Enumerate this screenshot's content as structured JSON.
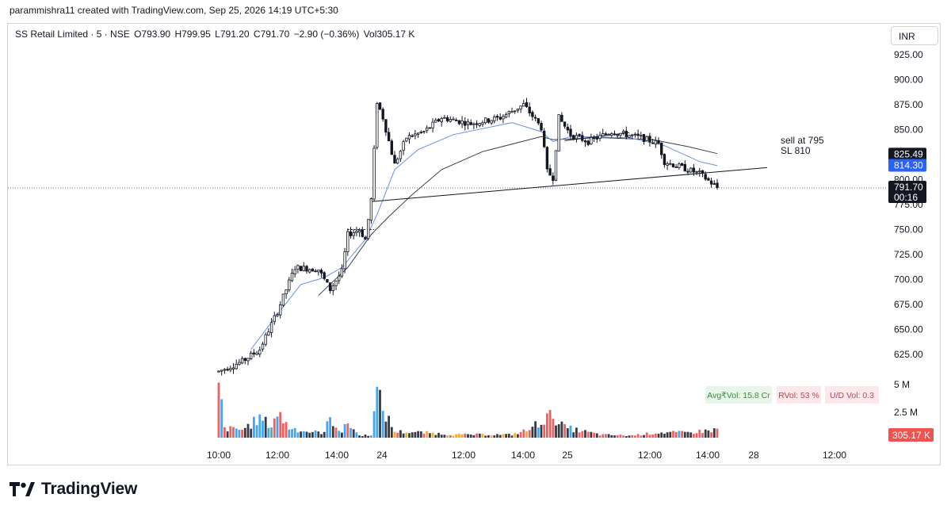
{
  "header": {
    "credit": "parammishra11 created with TradingView.com, Sep 25, 2026 14:19 UTC+5:30"
  },
  "legend": {
    "symbol": "SS Retail Limited · 5 · NSE",
    "open": "O793.90",
    "high": "H799.95",
    "low": "L791.20",
    "close": "C791.70",
    "change": "−2.90 (−0.36%)",
    "volume": "Vol305.17 K"
  },
  "currency": "INR",
  "footer": {
    "brand": "TradingView"
  },
  "chart_data": {
    "type": "candlestick",
    "title": "SS Retail Limited · 5 · NSE",
    "ylim": [
      600,
      937.5
    ],
    "y_ticks": [
      "925.00",
      "900.00",
      "875.00",
      "850.00",
      "825.00",
      "800.00",
      "775.00",
      "750.00",
      "725.00",
      "700.00",
      "675.00",
      "650.00",
      "625.00"
    ],
    "x_ticks": [
      "10:00",
      "12:00",
      "14:00",
      "24",
      "12:00",
      "14:00",
      "25",
      "12:00",
      "14:00",
      "28",
      "12:00"
    ],
    "grid": false,
    "price_path": [
      {
        "i": 0,
        "p": 608
      },
      {
        "i": 8,
        "p": 618
      },
      {
        "i": 14,
        "p": 630
      },
      {
        "i": 20,
        "p": 668
      },
      {
        "i": 26,
        "p": 712
      },
      {
        "i": 34,
        "p": 710
      },
      {
        "i": 38,
        "p": 690
      },
      {
        "i": 42,
        "p": 708
      },
      {
        "i": 44,
        "p": 745
      },
      {
        "i": 48,
        "p": 750
      },
      {
        "i": 50,
        "p": 740
      },
      {
        "i": 52,
        "p": 780
      },
      {
        "i": 54,
        "p": 878
      },
      {
        "i": 56,
        "p": 862
      },
      {
        "i": 60,
        "p": 815
      },
      {
        "i": 64,
        "p": 842
      },
      {
        "i": 70,
        "p": 848
      },
      {
        "i": 76,
        "p": 862
      },
      {
        "i": 86,
        "p": 856
      },
      {
        "i": 96,
        "p": 862
      },
      {
        "i": 104,
        "p": 875
      },
      {
        "i": 110,
        "p": 852
      },
      {
        "i": 112,
        "p": 808
      },
      {
        "i": 114,
        "p": 802
      },
      {
        "i": 116,
        "p": 862
      },
      {
        "i": 120,
        "p": 845
      },
      {
        "i": 126,
        "p": 838
      },
      {
        "i": 134,
        "p": 848
      },
      {
        "i": 144,
        "p": 842
      },
      {
        "i": 150,
        "p": 836
      },
      {
        "i": 152,
        "p": 818
      },
      {
        "i": 158,
        "p": 812
      },
      {
        "i": 164,
        "p": 806
      },
      {
        "i": 170,
        "p": 792
      }
    ],
    "volume_path": [
      {
        "i": 0,
        "v": 5.2
      },
      {
        "i": 2,
        "v": 0.9
      },
      {
        "i": 8,
        "v": 0.8
      },
      {
        "i": 14,
        "v": 1.9
      },
      {
        "i": 18,
        "v": 1.2
      },
      {
        "i": 20,
        "v": 2.5
      },
      {
        "i": 24,
        "v": 1.0
      },
      {
        "i": 30,
        "v": 0.6
      },
      {
        "i": 36,
        "v": 0.5
      },
      {
        "i": 38,
        "v": 2.0
      },
      {
        "i": 42,
        "v": 0.5
      },
      {
        "i": 44,
        "v": 1.5
      },
      {
        "i": 48,
        "v": 0.2
      },
      {
        "i": 52,
        "v": 0.3
      },
      {
        "i": 54,
        "v": 4.3
      },
      {
        "i": 56,
        "v": 2.8
      },
      {
        "i": 60,
        "v": 0.6
      },
      {
        "i": 70,
        "v": 0.5
      },
      {
        "i": 80,
        "v": 0.3
      },
      {
        "i": 100,
        "v": 0.3
      },
      {
        "i": 106,
        "v": 0.8
      },
      {
        "i": 110,
        "v": 1.7
      },
      {
        "i": 114,
        "v": 2.2
      },
      {
        "i": 118,
        "v": 1.0
      },
      {
        "i": 130,
        "v": 0.3
      },
      {
        "i": 140,
        "v": 0.2
      },
      {
        "i": 150,
        "v": 0.5
      },
      {
        "i": 160,
        "v": 0.5
      },
      {
        "i": 170,
        "v": 0.8
      }
    ],
    "ma_fast": [
      {
        "i": 11,
        "p": 630
      },
      {
        "i": 20,
        "p": 665
      },
      {
        "i": 28,
        "p": 695
      },
      {
        "i": 36,
        "p": 702
      },
      {
        "i": 42,
        "p": 712
      },
      {
        "i": 50,
        "p": 740
      },
      {
        "i": 54,
        "p": 765
      },
      {
        "i": 60,
        "p": 810
      },
      {
        "i": 68,
        "p": 830
      },
      {
        "i": 80,
        "p": 845
      },
      {
        "i": 100,
        "p": 857
      },
      {
        "i": 110,
        "p": 848
      },
      {
        "i": 114,
        "p": 838
      },
      {
        "i": 120,
        "p": 843
      },
      {
        "i": 140,
        "p": 842
      },
      {
        "i": 152,
        "p": 834
      },
      {
        "i": 164,
        "p": 818
      },
      {
        "i": 170,
        "p": 814
      }
    ],
    "ma_slow": [
      {
        "i": 34,
        "p": 684
      },
      {
        "i": 44,
        "p": 712
      },
      {
        "i": 52,
        "p": 745
      },
      {
        "i": 58,
        "p": 763
      },
      {
        "i": 66,
        "p": 785
      },
      {
        "i": 76,
        "p": 810
      },
      {
        "i": 90,
        "p": 828
      },
      {
        "i": 110,
        "p": 843
      },
      {
        "i": 114,
        "p": 840
      },
      {
        "i": 130,
        "p": 842
      },
      {
        "i": 148,
        "p": 840
      },
      {
        "i": 160,
        "p": 833
      },
      {
        "i": 170,
        "p": 826
      }
    ],
    "trendlines": [
      {
        "from": {
          "i": 52,
          "p": 778
        },
        "to": {
          "i": 187,
          "p": 812
        }
      },
      {
        "from": {
          "i": 118,
          "p": 839
        },
        "to": {
          "i": 140,
          "p": 847
        }
      }
    ],
    "level_line": {
      "from_i": 44,
      "to_i": 53,
      "p": 750
    },
    "last_price_line": 791.7,
    "annotation": [
      "sell at 795",
      "SL 810"
    ],
    "price_labels": [
      {
        "text": "825.49",
        "p": 825.49,
        "color": "#131722",
        "fg": "#ffffff"
      },
      {
        "text": "814.30",
        "p": 814.3,
        "color": "#2962ff",
        "fg": "#ffffff"
      },
      {
        "text": "800.00",
        "p": 800,
        "color": "#ffffff",
        "fg": "#131722"
      },
      {
        "text": "791.70",
        "sub": "00:16",
        "p": 791.7,
        "color": "#131722",
        "fg": "#ffffff"
      }
    ],
    "volume_axis": [
      "5 M",
      "2.5 M"
    ],
    "volume_label": "305.17 K",
    "stats": [
      {
        "text": "Avg₹Vol: 15.8 Cr",
        "bg": "#e8f5e9",
        "fg": "#388e3c"
      },
      {
        "text": "RVol: 53 %",
        "bg": "#fde7ea",
        "fg": "#b24b57"
      },
      {
        "text": "U/D Vol: 0.3",
        "bg": "#fde7ea",
        "fg": "#b24b57"
      }
    ],
    "colors": {
      "candle": "#131722",
      "ma_fast": "#6a8ee8",
      "ma_slow": "#3b3f4a",
      "volume_up": "#2196f3",
      "volume_down": "#ef4444",
      "volume_neutral": "#131722",
      "volume_green": "#26a69a",
      "volume_orange": "#ff9800"
    }
  }
}
